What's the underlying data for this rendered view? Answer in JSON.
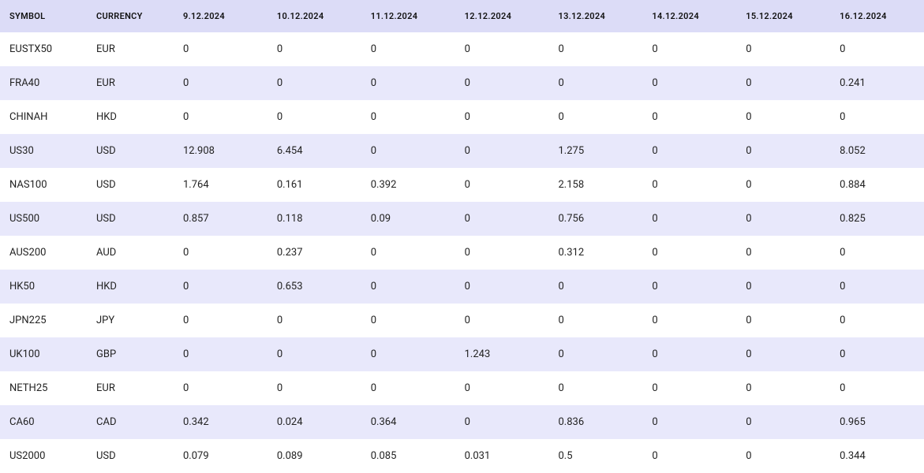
{
  "table": {
    "columns": [
      "SYMBOL",
      "CURRENCY",
      "9.12.2024",
      "10.12.2024",
      "11.12.2024",
      "12.12.2024",
      "13.12.2024",
      "14.12.2024",
      "15.12.2024",
      "16.12.2024"
    ],
    "rows": [
      [
        "EUSTX50",
        "EUR",
        "0",
        "0",
        "0",
        "0",
        "0",
        "0",
        "0",
        "0"
      ],
      [
        "FRA40",
        "EUR",
        "0",
        "0",
        "0",
        "0",
        "0",
        "0",
        "0",
        "0.241"
      ],
      [
        "CHINAH",
        "HKD",
        "0",
        "0",
        "0",
        "0",
        "0",
        "0",
        "0",
        "0"
      ],
      [
        "US30",
        "USD",
        "12.908",
        "6.454",
        "0",
        "0",
        "1.275",
        "0",
        "0",
        "8.052"
      ],
      [
        "NAS100",
        "USD",
        "1.764",
        "0.161",
        "0.392",
        "0",
        "2.158",
        "0",
        "0",
        "0.884"
      ],
      [
        "US500",
        "USD",
        "0.857",
        "0.118",
        "0.09",
        "0",
        "0.756",
        "0",
        "0",
        "0.825"
      ],
      [
        "AUS200",
        "AUD",
        "0",
        "0.237",
        "0",
        "0",
        "0.312",
        "0",
        "0",
        "0"
      ],
      [
        "HK50",
        "HKD",
        "0",
        "0.653",
        "0",
        "0",
        "0",
        "0",
        "0",
        "0"
      ],
      [
        "JPN225",
        "JPY",
        "0",
        "0",
        "0",
        "0",
        "0",
        "0",
        "0",
        "0"
      ],
      [
        "UK100",
        "GBP",
        "0",
        "0",
        "0",
        "1.243",
        "0",
        "0",
        "0",
        "0"
      ],
      [
        "NETH25",
        "EUR",
        "0",
        "0",
        "0",
        "0",
        "0",
        "0",
        "0",
        "0"
      ],
      [
        "CA60",
        "CAD",
        "0.342",
        "0.024",
        "0.364",
        "0",
        "0.836",
        "0",
        "0",
        "0.965"
      ],
      [
        "US2000",
        "USD",
        "0.079",
        "0.089",
        "0.085",
        "0.031",
        "0.5",
        "0",
        "0",
        "0.344"
      ]
    ],
    "header_bg": "#dcdcf7",
    "row_odd_bg": "#ffffff",
    "row_even_bg": "#e8e8fb",
    "font_size_header": 11,
    "font_size_body": 13
  }
}
